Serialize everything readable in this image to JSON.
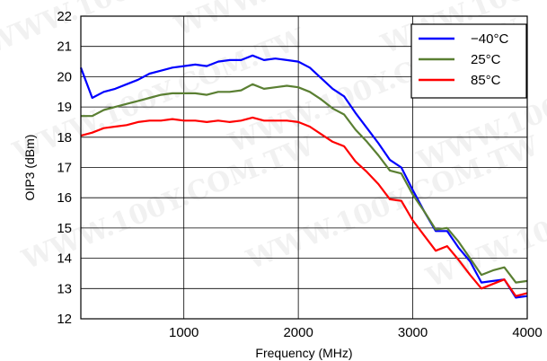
{
  "chart_data": {
    "type": "line",
    "title": "",
    "xlabel": "Frequency (MHz)",
    "ylabel": "OIP3 (dBm)",
    "xlim": [
      100,
      4000
    ],
    "ylim": [
      12,
      22
    ],
    "xticks": [
      1000,
      2000,
      3000,
      4000
    ],
    "yticks": [
      12,
      13,
      14,
      15,
      16,
      17,
      18,
      19,
      20,
      21,
      22
    ],
    "grid": true,
    "legend_position": "top-right",
    "watermark": "WWW.100Y.COM.TW",
    "series": [
      {
        "name": "−40°C",
        "color": "#0000ff",
        "x": [
          100,
          200,
          300,
          400,
          500,
          600,
          700,
          800,
          900,
          1000,
          1100,
          1200,
          1300,
          1400,
          1500,
          1600,
          1700,
          1800,
          1900,
          2000,
          2100,
          2200,
          2300,
          2400,
          2500,
          2600,
          2700,
          2800,
          2900,
          3000,
          3100,
          3200,
          3300,
          3400,
          3500,
          3600,
          3700,
          3800,
          3900,
          4000
        ],
        "y": [
          20.3,
          19.3,
          19.5,
          19.6,
          19.75,
          19.9,
          20.1,
          20.2,
          20.3,
          20.35,
          20.4,
          20.35,
          20.5,
          20.55,
          20.55,
          20.7,
          20.55,
          20.6,
          20.55,
          20.5,
          20.3,
          19.95,
          19.6,
          19.35,
          18.8,
          18.3,
          17.8,
          17.25,
          17.0,
          16.25,
          15.55,
          14.9,
          14.9,
          14.35,
          13.9,
          13.2,
          13.25,
          13.3,
          12.7,
          12.75
        ]
      },
      {
        "name": "25°C",
        "color": "#5a7f32",
        "x": [
          100,
          200,
          300,
          400,
          500,
          600,
          700,
          800,
          900,
          1000,
          1100,
          1200,
          1300,
          1400,
          1500,
          1600,
          1700,
          1800,
          1900,
          2000,
          2100,
          2200,
          2300,
          2400,
          2500,
          2600,
          2700,
          2800,
          2900,
          3000,
          3100,
          3200,
          3300,
          3400,
          3500,
          3600,
          3700,
          3800,
          3900,
          4000
        ],
        "y": [
          18.7,
          18.7,
          18.9,
          19.0,
          19.1,
          19.2,
          19.3,
          19.4,
          19.45,
          19.45,
          19.45,
          19.4,
          19.5,
          19.5,
          19.55,
          19.75,
          19.6,
          19.65,
          19.7,
          19.65,
          19.5,
          19.25,
          18.95,
          18.75,
          18.25,
          17.85,
          17.4,
          16.9,
          16.8,
          16.1,
          15.55,
          14.95,
          15.0,
          14.55,
          14.0,
          13.45,
          13.6,
          13.7,
          13.2,
          13.25
        ]
      },
      {
        "name": "85°C",
        "color": "#ff0000",
        "x": [
          100,
          200,
          300,
          400,
          500,
          600,
          700,
          800,
          900,
          1000,
          1100,
          1200,
          1300,
          1400,
          1500,
          1600,
          1700,
          1800,
          1900,
          2000,
          2100,
          2200,
          2300,
          2400,
          2500,
          2600,
          2700,
          2800,
          2900,
          3000,
          3100,
          3200,
          3300,
          3400,
          3500,
          3600,
          3700,
          3800,
          3900,
          4000
        ],
        "y": [
          18.05,
          18.15,
          18.3,
          18.35,
          18.4,
          18.5,
          18.55,
          18.55,
          18.6,
          18.55,
          18.55,
          18.5,
          18.55,
          18.5,
          18.55,
          18.65,
          18.55,
          18.55,
          18.55,
          18.5,
          18.35,
          18.1,
          17.85,
          17.7,
          17.2,
          16.85,
          16.45,
          15.95,
          15.9,
          15.25,
          14.75,
          14.25,
          14.4,
          13.95,
          13.45,
          13.0,
          13.15,
          13.3,
          12.75,
          12.85
        ]
      }
    ]
  }
}
